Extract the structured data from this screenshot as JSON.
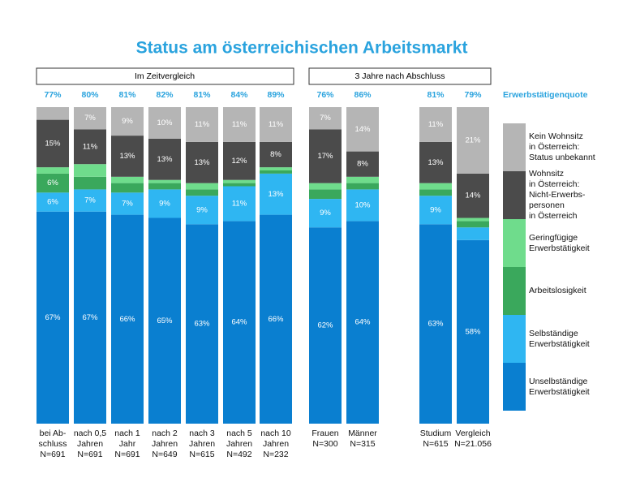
{
  "chart_data": {
    "type": "bar",
    "stacked": true,
    "title": "Status am österreichischen Arbeitsmarkt",
    "groups": [
      "Im Zeitvergleich",
      "3 Jahre nach Abschluss"
    ],
    "categories": [
      "bei Ab-\nschluss\nN=691",
      "nach 0,5\nJahren\nN=691",
      "nach 1\nJahr\nN=691",
      "nach 2\nJahren\nN=649",
      "nach 3\nJahren\nN=615",
      "nach 5\nJahren\nN=492",
      "nach 10\nJahren\nN=232",
      "Frauen\nN=300",
      "Männer\nN=315",
      "Studium\nN=615",
      "Vergleich\nN=21.056"
    ],
    "quote_label": "Erwerbstätigenquote",
    "quote_values": [
      77,
      80,
      81,
      82,
      81,
      84,
      89,
      76,
      86,
      81,
      79
    ],
    "quote_value_labels": [
      "77%",
      "80%",
      "81%",
      "82%",
      "81%",
      "84%",
      "89%",
      "76%",
      "86%",
      "81%",
      "79%"
    ],
    "ylim": [
      0,
      100
    ],
    "series": [
      {
        "name": "Unselbständige\nErwerbstätigkeit",
        "color": "#0a7fd0",
        "values": [
          67,
          67,
          66,
          65,
          63,
          64,
          66,
          62,
          64,
          63,
          58
        ],
        "value_labels": [
          "67%",
          "67%",
          "66%",
          "65%",
          "63%",
          "64%",
          "66%",
          "62%",
          "64%",
          "63%",
          "58%"
        ]
      },
      {
        "name": "Selbständige\nErwerbstätigkeit",
        "color": "#2fb6f2",
        "values": [
          6,
          7,
          7,
          9,
          9,
          11,
          13,
          9,
          10,
          9,
          4
        ],
        "value_labels": [
          "6%",
          "7%",
          "7%",
          "9%",
          "9%",
          "11%",
          "13%",
          "9%",
          "10%",
          "9%",
          null
        ]
      },
      {
        "name": "Arbeitslosigkeit",
        "color": "#3aa85c",
        "values": [
          6,
          4,
          3,
          2,
          2,
          1,
          1,
          3,
          2,
          2,
          2
        ],
        "value_labels": [
          "6%",
          null,
          null,
          null,
          null,
          null,
          null,
          null,
          null,
          null,
          null
        ]
      },
      {
        "name": "Geringfügige\nErwerbstätigkeit",
        "color": "#6fdc8c",
        "values": [
          2,
          4,
          2,
          1,
          2,
          1,
          1,
          2,
          2,
          2,
          1
        ],
        "value_labels": [
          null,
          null,
          null,
          null,
          null,
          null,
          null,
          null,
          null,
          null,
          null
        ]
      },
      {
        "name": "Wohnsitz\nin Österreich:\nNicht-Erwerbs-\npersonen\nin Österreich",
        "color": "#4b4b4b",
        "values": [
          15,
          11,
          13,
          13,
          13,
          12,
          8,
          17,
          8,
          13,
          14
        ],
        "value_labels": [
          "15%",
          "11%",
          "13%",
          "13%",
          "13%",
          "12%",
          "8%",
          "17%",
          "8%",
          "13%",
          "14%"
        ]
      },
      {
        "name": "Kein Wohnsitz\nin Österreich:\nStatus unbekannt",
        "color": "#b5b5b5",
        "values": [
          4,
          7,
          9,
          10,
          11,
          11,
          11,
          7,
          14,
          11,
          21
        ],
        "value_labels": [
          null,
          "7%",
          "9%",
          "10%",
          "11%",
          "11%",
          "11%",
          "7%",
          "14%",
          "11%",
          "21%"
        ]
      }
    ]
  }
}
